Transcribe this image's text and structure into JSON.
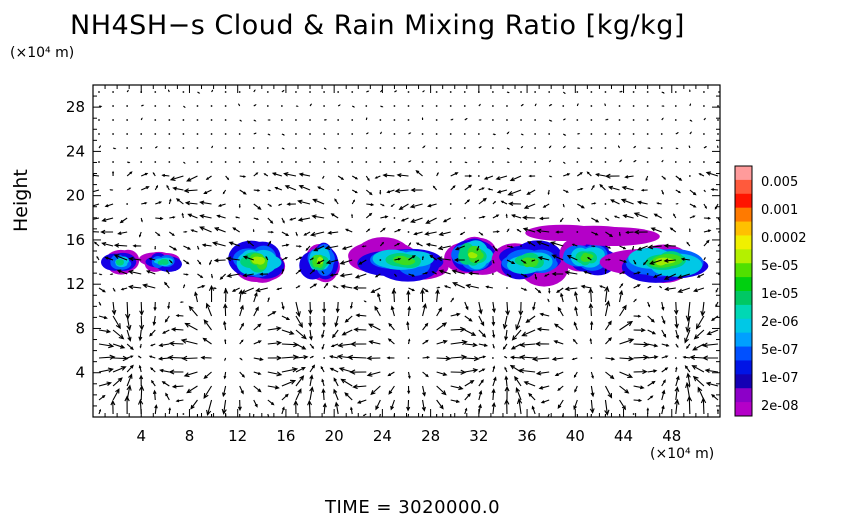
{
  "chart_data": {
    "type": "heatmap",
    "title": "NH4SH−s Cloud & Rain Mixing Ratio [kg/kg]",
    "ylabel": "Height",
    "xlabel": "",
    "x_multiplier": "(×10⁴ m)",
    "y_multiplier": "(×10⁴ m)",
    "xlim": [
      0,
      52
    ],
    "ylim": [
      0,
      30
    ],
    "x_ticks": [
      4,
      8,
      12,
      16,
      20,
      24,
      28,
      32,
      36,
      40,
      44,
      48
    ],
    "y_ticks": [
      4,
      8,
      12,
      16,
      20,
      24,
      28
    ],
    "overlay": "wind vectors (arrows)",
    "colorbar": {
      "labels": [
        "0.005",
        "0.001",
        "0.0002",
        "5e-05",
        "1e-05",
        "2e-06",
        "5e-07",
        "1e-07",
        "2e-08"
      ],
      "colors_top_to_bottom": [
        "#ff9b9b",
        "#ff5a3c",
        "#ff1400",
        "#ff7a00",
        "#ffc000",
        "#f0f000",
        "#b4f000",
        "#50e000",
        "#00d010",
        "#00c864",
        "#00d8b4",
        "#00c8e6",
        "#00a0ff",
        "#0050ff",
        "#0014e6",
        "#1400b4",
        "#8c00c8",
        "#b400c8"
      ]
    },
    "cloud_regions": [
      {
        "x": [
          0.5,
          4.0
        ],
        "y": [
          12.8,
          15.2
        ],
        "peak": 4
      },
      {
        "x": [
          4.0,
          7.5
        ],
        "y": [
          13.0,
          15.0
        ],
        "peak": 4
      },
      {
        "x": [
          11.0,
          16.5
        ],
        "y": [
          12.0,
          16.2
        ],
        "peak": 6
      },
      {
        "x": [
          17.0,
          20.5
        ],
        "y": [
          12.2,
          16.0
        ],
        "peak": 6
      },
      {
        "x": [
          21.5,
          30.0
        ],
        "y": [
          12.2,
          16.0
        ],
        "peak": 5
      },
      {
        "x": [
          29.0,
          34.0
        ],
        "y": [
          12.5,
          16.8
        ],
        "peak": 6
      },
      {
        "x": [
          33.0,
          39.5
        ],
        "y": [
          12.0,
          16.0
        ],
        "peak": 5
      },
      {
        "x": [
          38.5,
          43.5
        ],
        "y": [
          12.5,
          16.3
        ],
        "peak": 5
      },
      {
        "x": [
          42.5,
          52.0
        ],
        "y": [
          12.0,
          16.0
        ],
        "peak": 6
      },
      {
        "x": [
          36.0,
          46.0
        ],
        "y": [
          15.5,
          17.5
        ],
        "peak": 0
      }
    ],
    "time_label": "TIME  =  3020000.0"
  }
}
